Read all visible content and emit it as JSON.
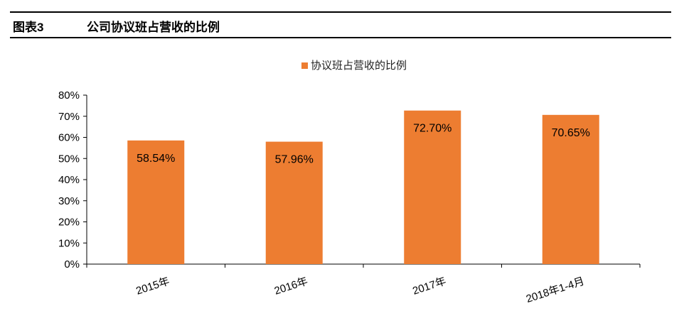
{
  "header": {
    "label": "图表3",
    "title": "公司协议班占营收的比例"
  },
  "chart_data": {
    "type": "bar",
    "categories": [
      "2015年",
      "2016年",
      "2017年",
      "2018年1-4月"
    ],
    "series": [
      {
        "name": "协议班占营收的比例",
        "values": [
          58.54,
          57.96,
          72.7,
          70.65
        ],
        "color": "#ED7D31"
      }
    ],
    "data_labels": [
      "58.54%",
      "57.96%",
      "72.70%",
      "70.65%"
    ],
    "yticks": [
      "0%",
      "10%",
      "20%",
      "30%",
      "40%",
      "50%",
      "60%",
      "70%",
      "80%"
    ],
    "ylim": [
      0,
      80
    ],
    "legend": "top-center",
    "grid": false
  }
}
